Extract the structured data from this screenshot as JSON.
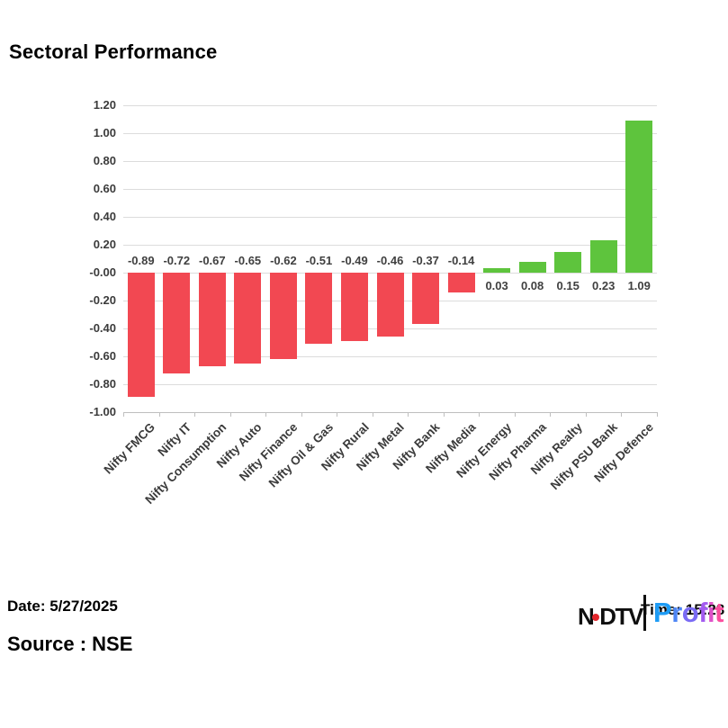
{
  "title": "Sectoral Performance",
  "footer": {
    "date_label": "Date: 5/27/2025",
    "source_label": "Source : NSE",
    "time_label": "Time: 15:28"
  },
  "logo": {
    "ndtv_left": "N",
    "ndtv_right": "DTV",
    "dot_color": "#e2262b",
    "profit_letters": [
      {
        "ch": "P",
        "color": "#1e9cf5"
      },
      {
        "ch": "r",
        "color": "#4e86f5"
      },
      {
        "ch": "o",
        "color": "#7a6bf5"
      },
      {
        "ch": "f",
        "color": "#a35bf0"
      },
      {
        "ch": "i",
        "color": "#e052c9"
      },
      {
        "ch": "t",
        "color": "#fb4e9f"
      }
    ]
  },
  "chart_data": {
    "type": "bar",
    "title": "Sectoral Performance",
    "xlabel": "",
    "ylabel": "",
    "categories": [
      "Nifty FMCG",
      "Nifty IT",
      "Nifty Consumption",
      "Nifty Auto",
      "Nifty Finance",
      "Nifty Oil & Gas",
      "Nifty Rural",
      "Nifty Metal",
      "Nifty Bank",
      "Nifty Media",
      "Nifty Energy",
      "Nifty Pharma",
      "Nifty Realty",
      "Nifty PSU Bank",
      "Nifty Defence"
    ],
    "values": [
      -0.89,
      -0.72,
      -0.67,
      -0.65,
      -0.62,
      -0.51,
      -0.49,
      -0.46,
      -0.37,
      -0.14,
      0.03,
      0.08,
      0.15,
      0.23,
      1.09
    ],
    "value_labels": [
      "-0.89",
      "-0.72",
      "-0.67",
      "-0.65",
      "-0.62",
      "-0.51",
      "-0.49",
      "-0.46",
      "-0.37",
      "-0.14",
      "0.03",
      "0.08",
      "0.15",
      "0.23",
      "1.09"
    ],
    "ylim": [
      -1.0,
      1.2
    ],
    "ytick_step": 0.2,
    "ytick_labels": [
      "1.20",
      "1.00",
      "0.80",
      "0.60",
      "0.40",
      "0.20",
      "-0.00",
      "-0.20",
      "-0.40",
      "-0.60",
      "-0.80",
      "-1.00"
    ],
    "grid": true,
    "legend": false,
    "positive_color": "#5ec43d",
    "negative_color": "#f24852",
    "grid_color": "#dcdcdc",
    "axis_color": "#bfbfbf",
    "label_color": "#404040"
  }
}
